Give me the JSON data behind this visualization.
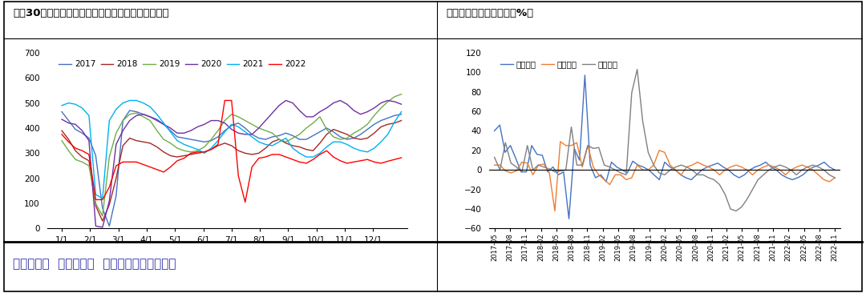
{
  "chart1_title": "图：30大中城市商品房成交面积（单位：万平方米）",
  "chart2_title": "图：中国家电产量同比（%）",
  "footer": "数据来源：  国家统计局  广发期货发展研究中心",
  "chart1": {
    "xlabels": [
      "1/1",
      "2/1",
      "3/1",
      "4/1",
      "5/1",
      "6/1",
      "7/1",
      "8/1",
      "9/1",
      "10/1",
      "11/1",
      "12/1"
    ],
    "ylim": [
      0,
      700
    ],
    "yticks": [
      0,
      100,
      200,
      300,
      400,
      500,
      600,
      700
    ],
    "series": {
      "2017": {
        "color": "#4472C4",
        "data": [
          465,
          430,
          395,
          380,
          360,
          290,
          80,
          10,
          130,
          430,
          470,
          465,
          455,
          445,
          435,
          415,
          390,
          365,
          360,
          355,
          350,
          345,
          350,
          365,
          390,
          410,
          420,
          400,
          375,
          360,
          355,
          365,
          370,
          380,
          370,
          355,
          355,
          370,
          385,
          400,
          385,
          365,
          355,
          360,
          375,
          395,
          415,
          430,
          440,
          450,
          455
        ]
      },
      "2018": {
        "color": "#A52828",
        "data": [
          390,
          355,
          310,
          285,
          270,
          90,
          30,
          95,
          200,
          330,
          360,
          350,
          345,
          340,
          325,
          305,
          290,
          285,
          290,
          295,
          300,
          305,
          315,
          330,
          340,
          330,
          310,
          300,
          295,
          300,
          320,
          345,
          355,
          340,
          330,
          325,
          315,
          310,
          340,
          375,
          395,
          385,
          375,
          360,
          355,
          360,
          380,
          405,
          415,
          420,
          430
        ]
      },
      "2019": {
        "color": "#70AD47",
        "data": [
          350,
          310,
          275,
          265,
          250,
          100,
          50,
          285,
          380,
          430,
          455,
          460,
          445,
          430,
          390,
          355,
          340,
          320,
          310,
          305,
          310,
          325,
          355,
          390,
          430,
          455,
          445,
          430,
          415,
          400,
          390,
          380,
          355,
          345,
          360,
          375,
          400,
          420,
          445,
          395,
          365,
          355,
          360,
          380,
          395,
          415,
          450,
          480,
          505,
          525,
          535
        ]
      },
      "2020": {
        "color": "#7030A0",
        "data": [
          435,
          420,
          415,
          390,
          350,
          10,
          5,
          110,
          335,
          390,
          430,
          450,
          455,
          445,
          430,
          415,
          400,
          380,
          380,
          390,
          405,
          415,
          430,
          430,
          420,
          395,
          380,
          375,
          375,
          400,
          430,
          460,
          490,
          510,
          500,
          470,
          445,
          445,
          465,
          480,
          500,
          510,
          495,
          470,
          455,
          465,
          480,
          500,
          510,
          505,
          495
        ]
      },
      "2021": {
        "color": "#00B0F0",
        "data": [
          490,
          500,
          495,
          480,
          450,
          135,
          120,
          430,
          475,
          500,
          510,
          510,
          500,
          485,
          455,
          420,
          385,
          350,
          335,
          325,
          315,
          300,
          320,
          350,
          385,
          415,
          405,
          385,
          365,
          345,
          335,
          330,
          345,
          360,
          320,
          300,
          285,
          285,
          300,
          325,
          345,
          345,
          335,
          320,
          310,
          305,
          320,
          345,
          375,
          425,
          465
        ]
      },
      "2022": {
        "color": "#FF0000",
        "data": [
          375,
          345,
          320,
          310,
          295,
          115,
          115,
          165,
          250,
          265,
          265,
          265,
          255,
          245,
          235,
          225,
          245,
          270,
          280,
          300,
          305,
          305,
          315,
          335,
          510,
          510,
          210,
          105,
          245,
          280,
          285,
          295,
          295,
          285,
          275,
          265,
          260,
          275,
          295,
          310,
          285,
          270,
          260,
          265,
          270,
          275,
          265,
          260,
          268,
          275,
          282
        ]
      }
    }
  },
  "chart2": {
    "ylim": [
      -60,
      120
    ],
    "yticks": [
      -60,
      -40,
      -20,
      0,
      20,
      40,
      60,
      80,
      100,
      120
    ],
    "xlabels": [
      "2017-05",
      "2017-08",
      "2017-11",
      "2018-02",
      "2018-05",
      "2018-08",
      "2018-11",
      "2019-02",
      "2019-05",
      "2019-08",
      "2019-11",
      "2020-02",
      "2020-05",
      "2020-08",
      "2020-11",
      "2021-02",
      "2021-05",
      "2021-08",
      "2021-11",
      "2022-02",
      "2022-05",
      "2022-08",
      "2022-11"
    ],
    "series": {
      "空调同比": {
        "color": "#4472C4",
        "data": [
          40,
          46,
          18,
          25,
          12,
          -2,
          -2,
          25,
          16,
          15,
          -2,
          3,
          -5,
          -2,
          -50,
          22,
          10,
          97,
          5,
          -8,
          -5,
          -12,
          8,
          3,
          0,
          -3,
          9,
          5,
          3,
          0,
          -5,
          -10,
          8,
          3,
          0,
          -5,
          -8,
          -10,
          -5,
          0,
          3,
          5,
          7,
          3,
          0,
          -5,
          -8,
          -5,
          0,
          3,
          5,
          8,
          3,
          0,
          -5,
          -8,
          -10,
          -8,
          -5,
          0,
          3,
          5,
          8,
          3,
          0
        ]
      },
      "冰箱同比": {
        "color": "#ED7D31",
        "data": [
          5,
          5,
          -1,
          -3,
          -1,
          8,
          7,
          -5,
          5,
          6,
          -3,
          -42,
          29,
          25,
          25,
          28,
          3,
          25,
          3,
          -5,
          -10,
          -15,
          -5,
          -5,
          -10,
          -8,
          5,
          0,
          0,
          5,
          20,
          18,
          5,
          0,
          -5,
          3,
          5,
          8,
          5,
          3,
          0,
          -5,
          0,
          3,
          5,
          3,
          0,
          -5,
          0,
          3,
          5,
          3,
          0,
          -5,
          0,
          3,
          5,
          3,
          0,
          -5,
          -10,
          -12,
          -8
        ]
      },
      "冷柜同比": {
        "color": "#808080",
        "data": [
          13,
          0,
          28,
          7,
          3,
          -2,
          25,
          0,
          5,
          3,
          1,
          -2,
          -1,
          0,
          44,
          5,
          5,
          25,
          22,
          23,
          5,
          3,
          0,
          -3,
          -5,
          79,
          103,
          50,
          18,
          5,
          -3,
          -5,
          0,
          3,
          5,
          3,
          0,
          -5,
          -5,
          -8,
          -10,
          -15,
          -25,
          -40,
          -42,
          -38,
          -30,
          -20,
          -10,
          -5,
          0,
          3,
          5,
          3,
          0,
          -5,
          0,
          3,
          5,
          3,
          0,
          -5,
          -8
        ]
      }
    }
  },
  "background_color": "#FFFFFF"
}
